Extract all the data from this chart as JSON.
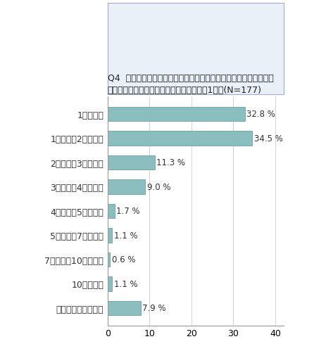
{
  "title_line1": "Q4  今年一緒に過ごす異性のパートナーへのクリスマスプレゼント",
  "title_line2": "にかける費用はいくらですか。（お答えは1つ）(N=177)",
  "categories": [
    "1万円未満",
    "1万円以上2万円未満",
    "2万円以上3万円未満",
    "3万円以上4万円未満",
    "4万円以上5万円未満",
    "5万円以上7万円未満",
    "7万円以上10万円未満",
    "10万円以上",
    "プレゼントはしない"
  ],
  "values": [
    32.8,
    34.5,
    11.3,
    9.0,
    1.7,
    1.1,
    0.6,
    1.1,
    7.9
  ],
  "bar_color": "#8BBFBF",
  "bar_edge_color": "#6A9E9E",
  "title_bg_color": "#EAF0F8",
  "title_fontsize": 9.0,
  "label_fontsize": 9.0,
  "value_fontsize": 8.5,
  "tick_fontsize": 9.0,
  "xlim": [
    0,
    42
  ],
  "xticks": [
    0,
    10,
    20,
    30,
    40
  ],
  "background_color": "#FFFFFF"
}
